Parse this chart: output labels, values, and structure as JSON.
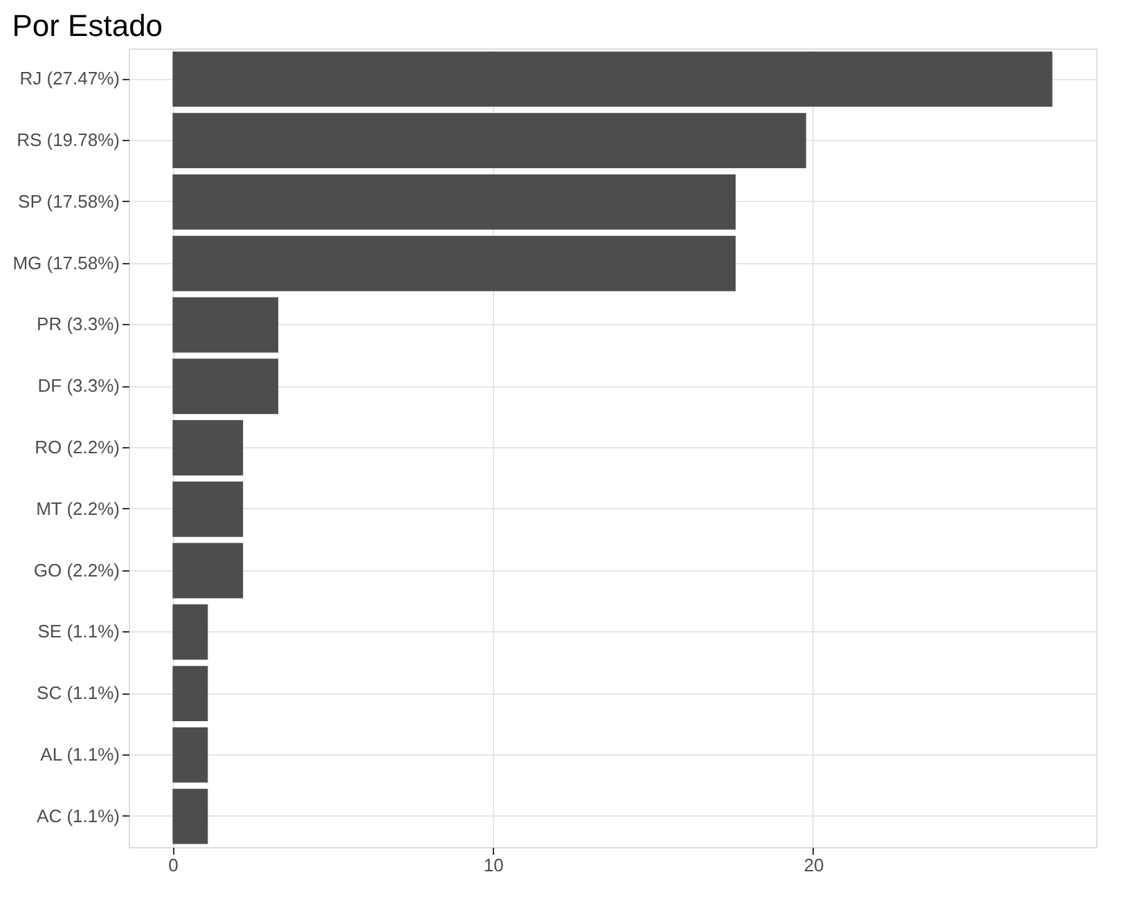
{
  "chart_data": {
    "type": "bar",
    "orientation": "horizontal",
    "title": "Por Estado",
    "categories": [
      "RJ (27.47%)",
      "RS (19.78%)",
      "SP (17.58%)",
      "MG (17.58%)",
      "PR (3.3%)",
      "DF (3.3%)",
      "RO (2.2%)",
      "MT (2.2%)",
      "GO (2.2%)",
      "SE (1.1%)",
      "SC (1.1%)",
      "AL (1.1%)",
      "AC (1.1%)"
    ],
    "values": [
      27.47,
      19.78,
      17.58,
      17.58,
      3.3,
      3.3,
      2.2,
      2.2,
      2.2,
      1.1,
      1.1,
      1.1,
      1.1
    ],
    "color": "#4d4d4d",
    "xlim": [
      -1.37,
      28.84
    ],
    "xticks": [
      0,
      10,
      20
    ],
    "grid": true
  }
}
